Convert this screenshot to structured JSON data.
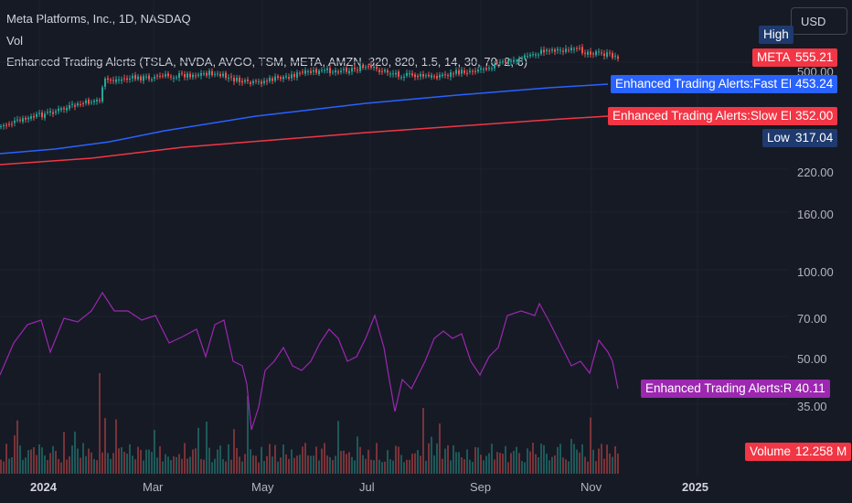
{
  "header": {
    "title": "Meta Platforms, Inc., 1D, NASDAQ",
    "volume_label": "Vol",
    "indicator_label": "Enhanced Trading Alerts (TSLA, NVDA, AVGO, TSM, META, AMZN, 320, 820, 1.5, 14, 30, 70, 2, 6)"
  },
  "currency_button": "USD",
  "price_tags": {
    "high_label": "High",
    "meta_label": "META",
    "meta_value": "555.21",
    "fast_ema_label": "Enhanced Trading Alerts:Fast EMA",
    "fast_ema_value": "453.24",
    "slow_ema_label": "Enhanced Trading Alerts:Slow EMA",
    "slow_ema_value": "352.00",
    "low_label": "Low",
    "low_value": "317.04",
    "rsi_label": "Enhanced Trading Alerts:RSI",
    "rsi_value": "40.11",
    "volume_label": "Volume",
    "volume_value": "12.258 M"
  },
  "y_axis_labels": [
    "500.00",
    "220.00",
    "160.00",
    "100.00",
    "70.00",
    "50.00",
    "35.00"
  ],
  "x_axis_labels": [
    "2024",
    "Mar",
    "May",
    "Jul",
    "Sep",
    "Nov",
    "2025"
  ],
  "colors": {
    "background": "#161a25",
    "candle_up": "#26a69a",
    "candle_down": "#ef5350",
    "fast_ema": "#2962ff",
    "slow_ema": "#f23645",
    "rsi": "#9c27b0",
    "high_low_tag": "#1e3a6e",
    "volume_tag": "#f23645"
  },
  "chart_data": {
    "type": "line",
    "x": [
      "2024-01",
      "2024-03",
      "2024-05",
      "2024-07",
      "2024-09",
      "2024-11"
    ],
    "series": [
      {
        "name": "META",
        "values": [
          355,
          490,
          440,
          510,
          525,
          555.21
        ]
      },
      {
        "name": "Enhanced Trading Alerts:Fast EMA",
        "values": [
          280,
          330,
          385,
          415,
          440,
          453.24
        ]
      },
      {
        "name": "Enhanced Trading Alerts:Slow EMA",
        "values": [
          250,
          275,
          300,
          320,
          340,
          352.0
        ]
      },
      {
        "name": "Enhanced Trading Alerts:RSI",
        "values": [
          55,
          75,
          25,
          60,
          70,
          40.11
        ]
      }
    ],
    "y_ticks": [
      500,
      220,
      160,
      100,
      70,
      50,
      35
    ],
    "log_scale": true,
    "high": 555.21,
    "low": 317.04,
    "volume_last": "12.258 M"
  }
}
